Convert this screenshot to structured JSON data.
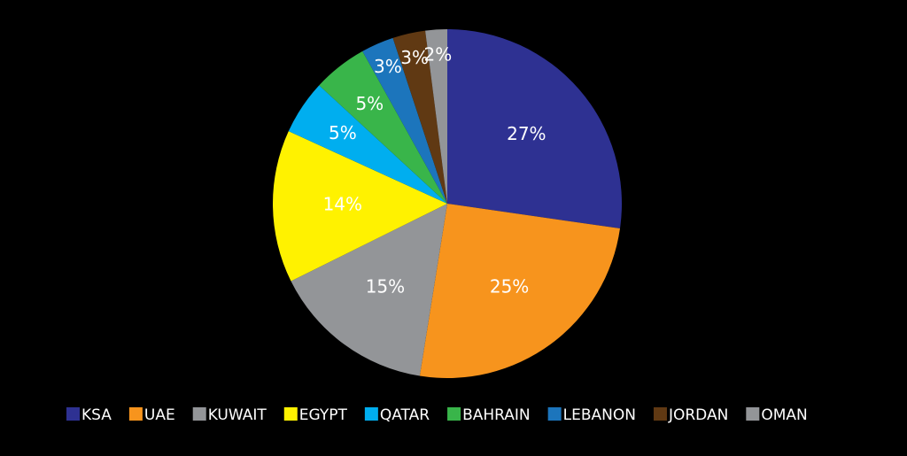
{
  "chart_data": {
    "type": "pie",
    "categories": [
      "KSA",
      "UAE",
      "KUWAIT",
      "EGYPT",
      "QATAR",
      "BAHRAIN",
      "LEBANON",
      "JORDAN",
      "OMAN"
    ],
    "values": [
      27,
      25,
      15,
      14,
      5,
      5,
      3,
      3,
      2
    ],
    "value_labels": [
      "27%",
      "25%",
      "15%",
      "14%",
      "5%",
      "5%",
      "3%",
      "3%",
      "2%"
    ],
    "colors": [
      "#2e3192",
      "#f7941d",
      "#939598",
      "#fff200",
      "#00aeef",
      "#39b54a",
      "#1c75bc",
      "#603913",
      "#939598"
    ],
    "legend": "bottom"
  }
}
